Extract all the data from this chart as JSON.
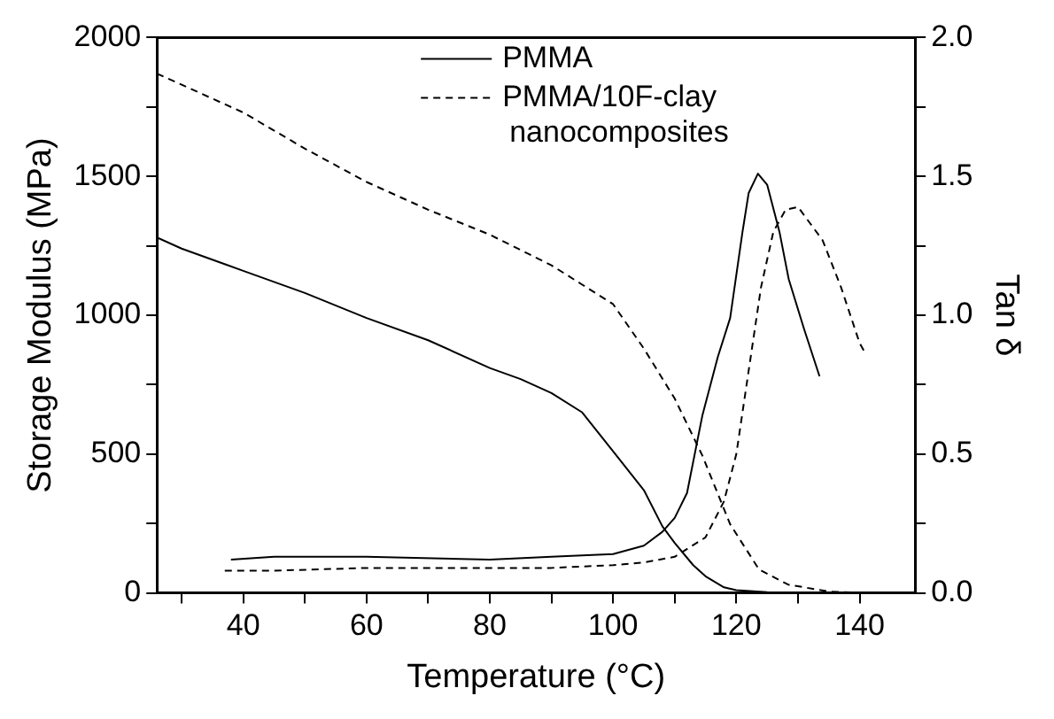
{
  "chart_data": {
    "type": "line",
    "xlabel": "Temperature (°C)",
    "ylabel": "Storage Modulus (MPa)",
    "y2label": "Tan δ",
    "xlim": [
      26,
      149
    ],
    "xticks": [
      {
        "value": 30,
        "label": null
      },
      40,
      {
        "value": 50,
        "label": null
      },
      60,
      {
        "value": 70,
        "label": null
      },
      80,
      {
        "value": 90,
        "label": null
      },
      100,
      {
        "value": 110,
        "label": null
      },
      120,
      {
        "value": 130,
        "label": null
      },
      140
    ],
    "ylim": [
      0,
      2000
    ],
    "yticks": [
      0,
      {
        "value": 250,
        "label": null
      },
      500,
      {
        "value": 750,
        "label": null
      },
      1000,
      {
        "value": 1250,
        "label": null
      },
      1500,
      {
        "value": 1750,
        "label": null
      },
      2000
    ],
    "y2lim": [
      0,
      2
    ],
    "y2ticks": [
      {
        "value": 0,
        "label": "0.0"
      },
      {
        "value": 0.25,
        "label": null
      },
      {
        "value": 0.5,
        "label": "0.5"
      },
      {
        "value": 0.75,
        "label": null
      },
      {
        "value": 1,
        "label": "1.0"
      },
      {
        "value": 1.25,
        "label": null
      },
      {
        "value": 1.5,
        "label": "1.5"
      },
      {
        "value": 1.75,
        "label": null
      },
      {
        "value": 2,
        "label": "2.0"
      }
    ],
    "grid": false,
    "legend": "top",
    "marker": "none",
    "series": [
      {
        "name": "PMMA",
        "color": "#000000",
        "line_style": "solid",
        "x": [
          26,
          30,
          40,
          50,
          60,
          70,
          80,
          85,
          90,
          95,
          100,
          105,
          108,
          110,
          113,
          115,
          118,
          120,
          125,
          130
        ],
        "values": [
          1280,
          1240,
          1160,
          1080,
          990,
          910,
          810,
          770,
          720,
          650,
          510,
          370,
          240,
          180,
          100,
          60,
          20,
          10,
          3,
          0
        ]
      },
      {
        "name": "PMMA/10F-clay nanocomposites",
        "color": "#000000",
        "line_style": "dashed",
        "x": [
          26,
          30,
          40,
          50,
          60,
          70,
          80,
          90,
          95,
          100,
          105,
          110,
          114.5,
          119,
          123.7,
          128.4,
          135,
          141
        ],
        "values": [
          1870,
          1830,
          1730,
          1600,
          1480,
          1380,
          1290,
          1180,
          1110,
          1040,
          880,
          700,
          494,
          247,
          84,
          30,
          5,
          0
        ]
      },
      {
        "color": "#000000",
        "line_style": "solid",
        "axis": "y2",
        "x": [
          38,
          45,
          60,
          80,
          90,
          100,
          105,
          108,
          110,
          112,
          114.5,
          117,
          119,
          121,
          122,
          123.5,
          125,
          127,
          128.5,
          131,
          133.5
        ],
        "values": [
          0.12,
          0.13,
          0.13,
          0.12,
          0.13,
          0.14,
          0.17,
          0.22,
          0.27,
          0.36,
          0.64,
          0.85,
          0.99,
          1.3,
          1.44,
          1.51,
          1.47,
          1.3,
          1.13,
          0.95,
          0.78
        ]
      },
      {
        "color": "#000000",
        "line_style": "dashed",
        "axis": "y2",
        "x": [
          37,
          45,
          60,
          80,
          90,
          100,
          105,
          110,
          115,
          118,
          120,
          122,
          124,
          126,
          128,
          130,
          132,
          134,
          137,
          140,
          141
        ],
        "values": [
          0.08,
          0.08,
          0.09,
          0.09,
          0.09,
          0.1,
          0.11,
          0.13,
          0.2,
          0.33,
          0.5,
          0.8,
          1.1,
          1.3,
          1.38,
          1.39,
          1.33,
          1.27,
          1.1,
          0.9,
          0.86
        ]
      }
    ]
  }
}
